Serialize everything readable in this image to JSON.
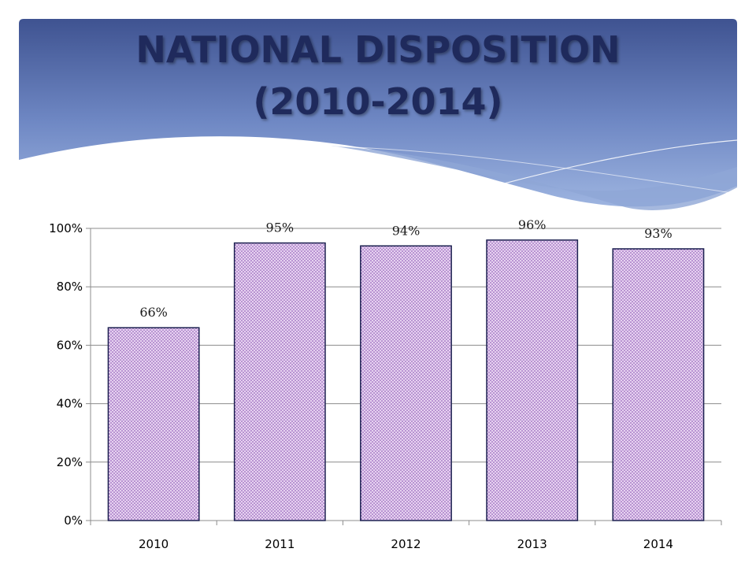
{
  "slide": {
    "title_line1": "NATIONAL DISPOSITION",
    "title_line2": "(2010-2014)"
  },
  "colors": {
    "title": "#1f2a5c",
    "header_dark": "#4a5f9c",
    "header_light": "#8fa9d8",
    "bar_fill": "#e6d2f0",
    "bar_dots": "#7a3fa8",
    "bar_stroke": "#1c2050",
    "gridline": "#8c8c8c"
  },
  "chart_data": {
    "type": "bar",
    "categories": [
      "2010",
      "2011",
      "2012",
      "2013",
      "2014"
    ],
    "values": [
      66,
      95,
      94,
      96,
      93
    ],
    "data_labels": [
      "66%",
      "95%",
      "94%",
      "96%",
      "93%"
    ],
    "y_ticks": [
      "0%",
      "20%",
      "40%",
      "60%",
      "80%",
      "100%"
    ],
    "ylim": [
      0,
      100
    ],
    "grid": true,
    "title": "",
    "xlabel": "",
    "ylabel": ""
  }
}
